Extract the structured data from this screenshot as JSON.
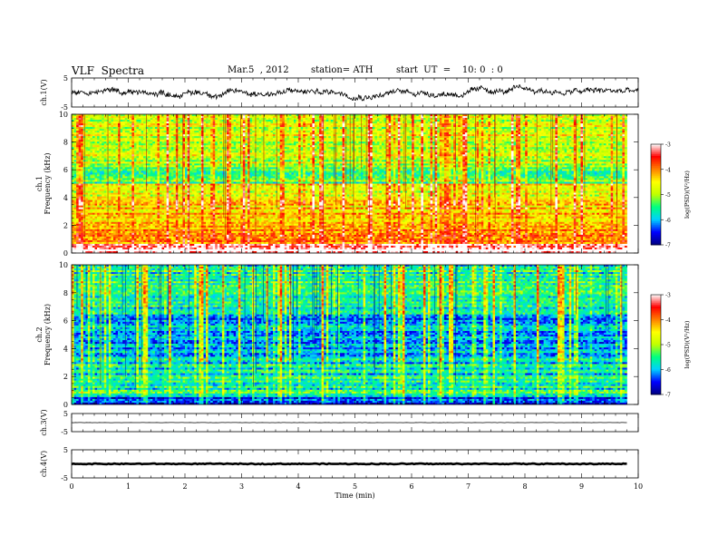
{
  "header": {
    "title": "VLF  Spectra",
    "date": "Mar.5  , 2012",
    "station": "station= ATH",
    "start": "start  UT  =    10: 0  : 0"
  },
  "colors": {
    "background": "#ffffff",
    "axis": "#000000",
    "trace": "#000000"
  },
  "chart_data": [
    {
      "type": "line",
      "panel": "ch1-waveform",
      "ylabel": "ch.1(V)",
      "ylim": [
        -5,
        5
      ],
      "yticks": [
        "5",
        "-5"
      ],
      "description_values": {
        "mean": 0.2,
        "amplitude": 1.5
      },
      "xlim": [
        0,
        10
      ]
    },
    {
      "type": "heatmap",
      "panel": "ch1-spectrogram",
      "ylabel": "ch.1\nFrequency  (kHz)",
      "ylim": [
        0,
        10
      ],
      "yticks": [
        "0",
        "2",
        "4",
        "6",
        "8",
        "10"
      ],
      "xlim": [
        0,
        9.8
      ],
      "colorbar": {
        "label": "log(PSD)(V²/Hz)",
        "range": [
          -7,
          -3
        ],
        "ticks": [
          "-3",
          "-4",
          "-5",
          "-6",
          "-7"
        ],
        "colormap": [
          "#00007f",
          "#0000ff",
          "#00d0ff",
          "#00ff80",
          "#c0ff00",
          "#ffff00",
          "#ff8000",
          "#ff0000",
          "#ffffff"
        ]
      },
      "band_levels": [
        {
          "f": [
            0.0,
            0.6
          ],
          "level": -3.0
        },
        {
          "f": [
            0.6,
            1.4
          ],
          "level": -3.8
        },
        {
          "f": [
            1.4,
            2.2
          ],
          "level": -4.0
        },
        {
          "f": [
            2.2,
            3.0
          ],
          "level": -4.3
        },
        {
          "f": [
            3.0,
            4.0
          ],
          "level": -4.4
        },
        {
          "f": [
            4.0,
            5.0
          ],
          "level": -4.6
        },
        {
          "f": [
            5.0,
            6.2
          ],
          "level": -5.3
        },
        {
          "f": [
            6.2,
            8.0
          ],
          "level": -4.9
        },
        {
          "f": [
            8.0,
            10.0
          ],
          "level": -4.8
        }
      ]
    },
    {
      "type": "heatmap",
      "panel": "ch2-spectrogram",
      "ylabel": "ch.2\nFrequency  (kHz)",
      "ylim": [
        0,
        10
      ],
      "yticks": [
        "0",
        "2",
        "4",
        "6",
        "8",
        "10"
      ],
      "xlim": [
        0,
        9.8
      ],
      "colorbar": {
        "label": "log(PSD)(V²/Hz)",
        "range": [
          -7,
          -3
        ],
        "ticks": [
          "-3",
          "-4",
          "-5",
          "-6",
          "-7"
        ],
        "colormap": [
          "#00007f",
          "#0000ff",
          "#00d0ff",
          "#00ff80",
          "#c0ff00",
          "#ffff00",
          "#ff8000",
          "#ff0000",
          "#ffffff"
        ]
      },
      "band_levels": [
        {
          "f": [
            0.0,
            0.5
          ],
          "level": -6.6
        },
        {
          "f": [
            0.5,
            2.0
          ],
          "level": -5.6
        },
        {
          "f": [
            2.0,
            3.5
          ],
          "level": -5.8
        },
        {
          "f": [
            3.5,
            5.0
          ],
          "level": -6.0
        },
        {
          "f": [
            5.0,
            6.5
          ],
          "level": -6.1
        },
        {
          "f": [
            6.5,
            8.5
          ],
          "level": -5.7
        },
        {
          "f": [
            8.5,
            10.0
          ],
          "level": -5.6
        }
      ]
    },
    {
      "type": "line",
      "panel": "ch3-waveform",
      "ylabel": "ch.3(V)",
      "ylim": [
        -5,
        5
      ],
      "yticks": [
        "5",
        "-5"
      ],
      "description_values": {
        "mean": 0.0,
        "amplitude": 0.1
      },
      "xlim": [
        0,
        9.8
      ]
    },
    {
      "type": "line",
      "panel": "ch4-waveform",
      "ylabel": "ch.4(V)",
      "ylim": [
        -5,
        5
      ],
      "yticks": [
        "5",
        "-5"
      ],
      "description_values": {
        "mean": 0.0,
        "amplitude": 0.3
      },
      "xlim": [
        0,
        9.8
      ]
    }
  ],
  "xaxis": {
    "label": "Time  (min)",
    "ticks": [
      "0",
      "1",
      "2",
      "3",
      "4",
      "5",
      "6",
      "7",
      "8",
      "9",
      "10"
    ],
    "range": [
      0,
      10
    ]
  }
}
